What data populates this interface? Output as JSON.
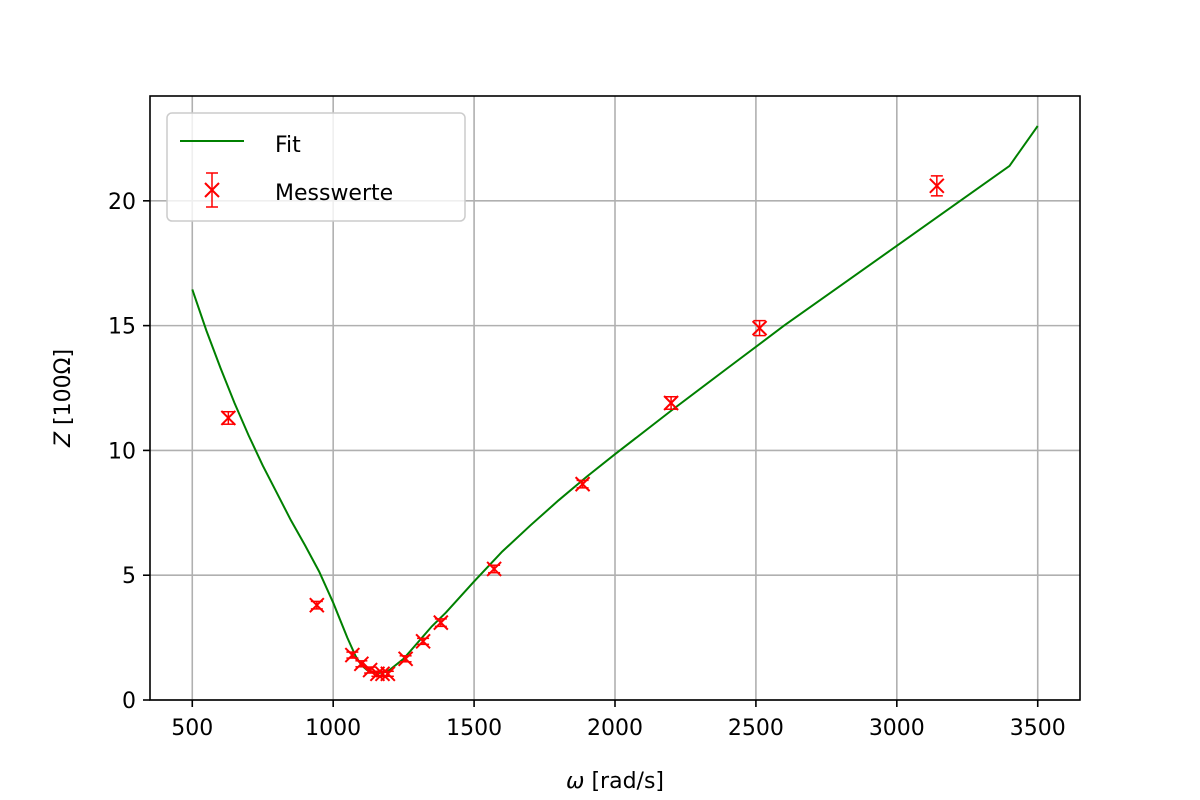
{
  "chart_data": {
    "type": "scatter",
    "xlabel_symbol": "ω",
    "xlabel_unit": "[rad/s]",
    "ylabel_symbol": "Z",
    "ylabel_unit": "[100Ω]",
    "xlim": [
      350,
      3650
    ],
    "ylim": [
      0,
      24.2
    ],
    "xticks": [
      500,
      1000,
      1500,
      2000,
      2500,
      3000,
      3500
    ],
    "yticks": [
      0,
      5,
      10,
      15,
      20
    ],
    "grid": true,
    "legend_position": "top-left",
    "fit": {
      "name": "Fit",
      "color": "#008000",
      "x": [
        500,
        550,
        600,
        650,
        700,
        750,
        800,
        850,
        900,
        950,
        1000,
        1050,
        1080,
        1100,
        1120,
        1140,
        1160,
        1180,
        1200,
        1250,
        1300,
        1350,
        1400,
        1500,
        1600,
        1700,
        1800,
        1900,
        2000,
        2200,
        2400,
        2600,
        2800,
        3000,
        3200,
        3400,
        3500
      ],
      "y": [
        16.45,
        14.8,
        13.3,
        11.9,
        10.6,
        9.4,
        8.3,
        7.2,
        6.2,
        5.15,
        3.9,
        2.5,
        1.75,
        1.4,
        1.2,
        1.1,
        1.08,
        1.1,
        1.2,
        1.65,
        2.3,
        2.95,
        3.5,
        4.75,
        5.95,
        7.0,
        8.0,
        8.95,
        9.85,
        11.6,
        13.3,
        15.0,
        16.6,
        18.2,
        19.8,
        21.4,
        23.0
      ]
    },
    "measurements": {
      "name": "Messwerte",
      "color": "#ff0000",
      "points": [
        {
          "x": 628,
          "y": 11.3,
          "err": 0.25
        },
        {
          "x": 942,
          "y": 3.8,
          "err": 0.15
        },
        {
          "x": 1068,
          "y": 1.8,
          "err": 0.12
        },
        {
          "x": 1100,
          "y": 1.45,
          "err": 0.12
        },
        {
          "x": 1131,
          "y": 1.2,
          "err": 0.12
        },
        {
          "x": 1157,
          "y": 1.05,
          "err": 0.1
        },
        {
          "x": 1175,
          "y": 1.05,
          "err": 0.1
        },
        {
          "x": 1194,
          "y": 1.05,
          "err": 0.1
        },
        {
          "x": 1257,
          "y": 1.65,
          "err": 0.12
        },
        {
          "x": 1319,
          "y": 2.35,
          "err": 0.12
        },
        {
          "x": 1382,
          "y": 3.1,
          "err": 0.15
        },
        {
          "x": 1571,
          "y": 5.25,
          "err": 0.15
        },
        {
          "x": 1885,
          "y": 8.65,
          "err": 0.15
        },
        {
          "x": 2199,
          "y": 11.9,
          "err": 0.25
        },
        {
          "x": 2513,
          "y": 14.9,
          "err": 0.3
        },
        {
          "x": 3142,
          "y": 20.6,
          "err": 0.4
        }
      ]
    }
  }
}
